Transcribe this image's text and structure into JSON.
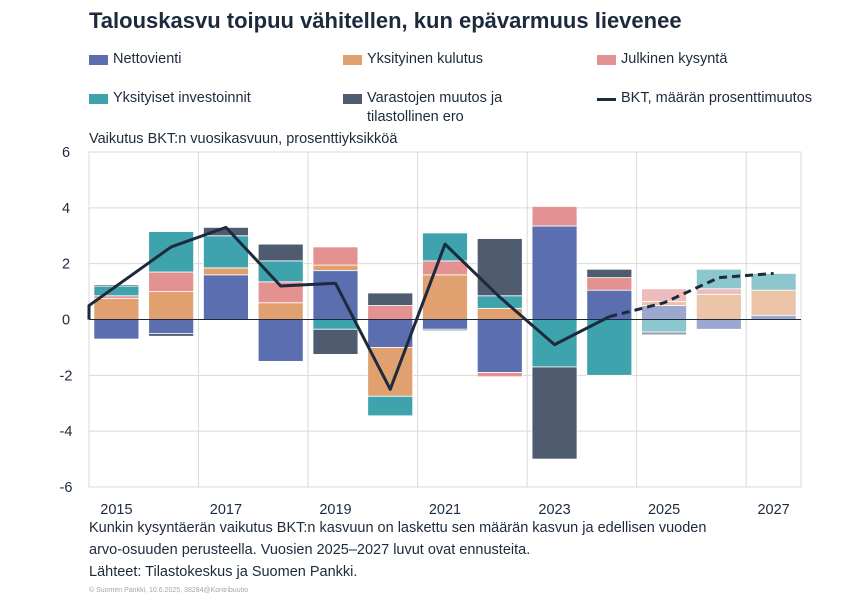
{
  "title": "Talouskasvu toipuu vähitellen, kun epävarmuus lievenee",
  "legend": [
    {
      "label": "Nettovienti",
      "color": "#5b6fb0",
      "kind": "box"
    },
    {
      "label": "Yksityinen kulutus",
      "color": "#e0a070",
      "kind": "box"
    },
    {
      "label": "Julkinen kysyntä",
      "color": "#e39191",
      "kind": "box"
    },
    {
      "label": "Yksityiset investoinnit",
      "color": "#3fa3ad",
      "kind": "box"
    },
    {
      "label": "Varastojen muutos ja tilastollinen ero",
      "color": "#4f5b6e",
      "kind": "box"
    },
    {
      "label": "BKT, määrän prosenttimuutos",
      "color": "#1c2a3c",
      "kind": "line"
    }
  ],
  "subtitle": "Vaikutus BKT:n vuosikasvuun, prosenttiyksikköä",
  "footer": {
    "line1": "Kunkin kysyntäerän vaikutus BKT:n kasvuun on laskettu sen määrän kasvun ja edellisen vuoden",
    "line2": "arvo-osuuden perusteella. Vuosien 2025–2027 luvut ovat ennusteita.",
    "line3": "Lähteet: Tilastokeskus ja Suomen Pankki.",
    "copyright": "© Suomen Pankki, 10.6.2025, 38284@Kontribuutio"
  },
  "chart_data": {
    "type": "bar",
    "stacked": true,
    "categories": [
      "2015",
      "2016",
      "2017",
      "2018",
      "2019",
      "2020",
      "2021",
      "2022",
      "2023",
      "2024",
      "2025",
      "2026",
      "2027"
    ],
    "x_tick_labels": [
      "2015",
      "2017",
      "2019",
      "2021",
      "2023",
      "2025",
      "2027"
    ],
    "forecast_from": "2025",
    "ylim": [
      -6,
      6
    ],
    "yticks": [
      -6,
      -4,
      -2,
      0,
      2,
      4,
      6
    ],
    "xlabel": "",
    "ylabel": "Vaikutus BKT:n vuosikasvuun, prosenttiyksikköä",
    "grid": true,
    "series": [
      {
        "name": "Nettovienti",
        "color": "#5b6fb0",
        "values": [
          -0.7,
          -0.5,
          1.6,
          -1.5,
          1.75,
          -1.0,
          -0.35,
          -1.9,
          3.35,
          1.05,
          0.5,
          -0.35,
          0.15
        ]
      },
      {
        "name": "Yksityinen kulutus",
        "color": "#e0a070",
        "values": [
          0.75,
          1.0,
          0.25,
          0.6,
          0.2,
          -1.75,
          1.6,
          0.4,
          0.0,
          0.0,
          0.15,
          0.9,
          0.9
        ]
      },
      {
        "name": "Julkinen kysyntä",
        "color": "#e39191",
        "values": [
          0.1,
          0.7,
          0.0,
          0.75,
          0.65,
          0.5,
          0.5,
          -0.15,
          0.7,
          0.45,
          0.45,
          0.2,
          0.0
        ]
      },
      {
        "name": "Yksityiset investoinnit",
        "color": "#3fa3ad",
        "values": [
          0.35,
          1.45,
          1.15,
          0.75,
          -0.35,
          -0.7,
          1.0,
          0.45,
          -1.7,
          -2.0,
          -0.45,
          0.7,
          0.6
        ]
      },
      {
        "name": "Varastojen muutos ja tilastollinen ero",
        "color": "#4f5b6e",
        "values": [
          0.05,
          -0.1,
          0.3,
          0.6,
          -0.9,
          0.45,
          -0.05,
          2.05,
          -3.3,
          0.3,
          -0.1,
          0.0,
          0.0
        ]
      }
    ],
    "line": {
      "name": "BKT, määrän prosenttimuutos",
      "color": "#1c2a3c",
      "values": [
        0.5,
        2.6,
        3.3,
        1.2,
        1.3,
        -2.5,
        2.7,
        0.8,
        -0.9,
        0.1,
        0.6,
        1.5,
        1.65
      ]
    }
  }
}
